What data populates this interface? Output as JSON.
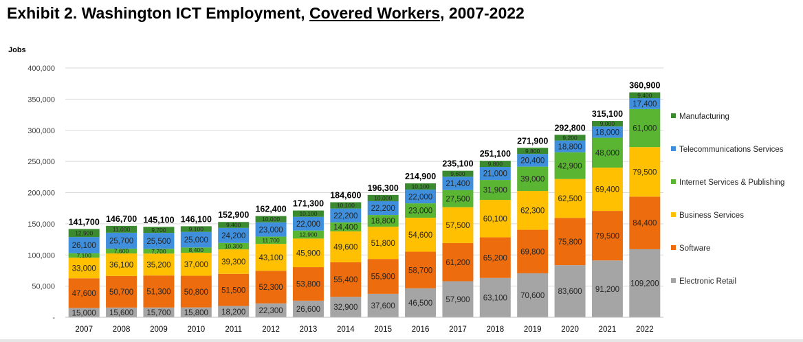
{
  "title_parts": {
    "prefix": "Exhibit 2. Washington ICT Employment, ",
    "underlined": "Covered Workers",
    "suffix": ", 2007-2022"
  },
  "chart_data": {
    "type": "bar",
    "stacked": true,
    "title": "Exhibit 2. Washington ICT Employment, Covered Workers, 2007-2022",
    "xlabel": "",
    "ylabel": "Jobs",
    "ylim": [
      0,
      400000
    ],
    "yticks": [
      0,
      50000,
      100000,
      150000,
      200000,
      250000,
      300000,
      350000,
      400000
    ],
    "ytick_labels": [
      "-",
      "50,000",
      "100,000",
      "150,000",
      "200,000",
      "250,000",
      "300,000",
      "350,000",
      "400,000"
    ],
    "grid": true,
    "legend_position": "right",
    "categories": [
      "2007",
      "2008",
      "2009",
      "2010",
      "2011",
      "2012",
      "2013",
      "2014",
      "2015",
      "2016",
      "2017",
      "2018",
      "2019",
      "2020",
      "2021",
      "2022"
    ],
    "totals": [
      "141,700",
      "146,700",
      "145,100",
      "146,100",
      "152,900",
      "162,400",
      "171,300",
      "184,600",
      "196,300",
      "214,900",
      "235,100",
      "251,100",
      "271,900",
      "292,800",
      "315,100",
      "360,900"
    ],
    "series": [
      {
        "name": "Electronic Retail",
        "color": "#a5a5a5",
        "values": [
          15000,
          15600,
          15700,
          15800,
          18200,
          22300,
          26600,
          32900,
          37600,
          46500,
          57900,
          63100,
          70600,
          83600,
          91200,
          109200
        ],
        "labels": [
          "15,000",
          "15,600",
          "15,700",
          "15,800",
          "18,200",
          "22,300",
          "26,600",
          "32,900",
          "37,600",
          "46,500",
          "57,900",
          "63,100",
          "70,600",
          "83,600",
          "91,200",
          "109,200"
        ]
      },
      {
        "name": "Software",
        "color": "#ed6c0e",
        "values": [
          47600,
          50700,
          51300,
          50800,
          51500,
          52300,
          53800,
          55400,
          55900,
          58700,
          61200,
          65200,
          69800,
          75800,
          79500,
          84400
        ],
        "labels": [
          "47,600",
          "50,700",
          "51,300",
          "50,800",
          "51,500",
          "52,300",
          "53,800",
          "55,400",
          "55,900",
          "58,700",
          "61,200",
          "65,200",
          "69,800",
          "75,800",
          "79,500",
          "84,400"
        ]
      },
      {
        "name": "Business Services",
        "color": "#fec000",
        "values": [
          33000,
          36100,
          35200,
          37000,
          39300,
          43100,
          45900,
          49600,
          51800,
          54600,
          57500,
          60100,
          62300,
          62500,
          69400,
          79500
        ],
        "labels": [
          "33,000",
          "36,100",
          "35,200",
          "37,000",
          "39,300",
          "43,100",
          "45,900",
          "49,600",
          "51,800",
          "54,600",
          "57,500",
          "60,100",
          "62,300",
          "62,500",
          "69,400",
          "79,500"
        ]
      },
      {
        "name": "Internet Services & Publishing",
        "color": "#5ab533",
        "values": [
          7100,
          7600,
          7700,
          8400,
          10300,
          11700,
          12900,
          14400,
          18800,
          23000,
          27500,
          31900,
          39000,
          42900,
          48000,
          61000
        ],
        "labels": [
          "7,100",
          "7,600",
          "7,700",
          "8,400",
          "10,300",
          "11,700",
          "12,900",
          "14,400",
          "18,800",
          "23,000",
          "27,500",
          "31,900",
          "39,000",
          "42,900",
          "48,000",
          "61,000"
        ]
      },
      {
        "name": "Telecommunications Services",
        "color": "#3f8fdd",
        "values": [
          26100,
          25700,
          25500,
          25000,
          24200,
          23000,
          22000,
          22200,
          22200,
          22000,
          21400,
          21000,
          20400,
          18800,
          18000,
          17400
        ],
        "labels": [
          "26,100",
          "25,700",
          "25,500",
          "25,000",
          "24,200",
          "23,000",
          "22,000",
          "22,200",
          "22,200",
          "22,000",
          "21,400",
          "21,000",
          "20,400",
          "18,800",
          "18,000",
          "17,400"
        ]
      },
      {
        "name": "Manufacturing",
        "color": "#3b8a2f",
        "values": [
          12900,
          11000,
          9700,
          9100,
          9400,
          10000,
          10100,
          10100,
          10000,
          10100,
          9600,
          9800,
          9800,
          9200,
          9000,
          9400
        ],
        "labels": [
          "12,900",
          "11,000",
          "9,700",
          "9,100",
          "9,400",
          "10,000",
          "10,100",
          "10,100",
          "10,000",
          "10,100",
          "9,600",
          "9,800",
          "9,800",
          "9,200",
          "9,000",
          "9,400"
        ]
      }
    ],
    "legend_order": [
      "Manufacturing",
      "Telecommunications Services",
      "Internet Services & Publishing",
      "Business Services",
      "Software",
      "Electronic Retail"
    ]
  }
}
